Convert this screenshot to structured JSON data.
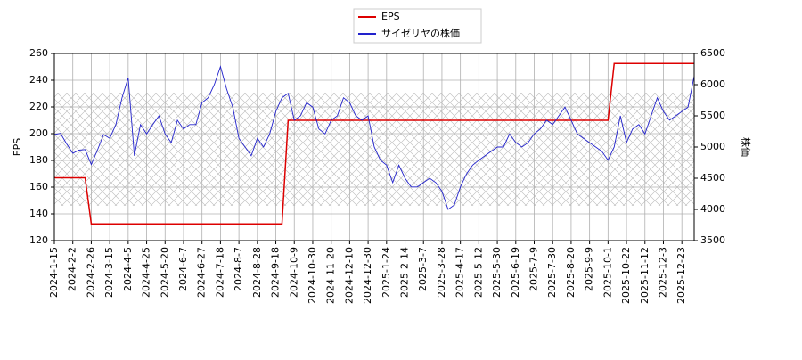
{
  "chart_data": {
    "type": "line",
    "ylabel": "EPS",
    "y2label": "株価",
    "categories": [
      "2024-1-15",
      null,
      null,
      "2024-2-2",
      null,
      null,
      "2024-2-26",
      null,
      null,
      "2024-3-15",
      null,
      null,
      "2024-4-5",
      null,
      null,
      "2024-4-25",
      null,
      null,
      "2024-5-20",
      null,
      null,
      "2024-6-7",
      null,
      null,
      "2024-6-27",
      null,
      null,
      "2024-7-18",
      null,
      null,
      "2024-8-7",
      null,
      null,
      "2024-8-28",
      null,
      null,
      "2024-9-18",
      null,
      null,
      "2024-10-9",
      null,
      null,
      "2024-10-30",
      null,
      null,
      "2024-11-20",
      null,
      null,
      "2024-12-10",
      null,
      null,
      "2024-12-30",
      null,
      null,
      "2025-1-24",
      null,
      null,
      "2025-2-14",
      null,
      null,
      "2025-3-7",
      null,
      null,
      "2025-3-28",
      null,
      null,
      "2025-4-17",
      null,
      null,
      "2025-5-12",
      null,
      null,
      "2025-5-30",
      null,
      null,
      "2025-6-19",
      null,
      null,
      "2025-7-9",
      null,
      null,
      "2025-7-30",
      null,
      null,
      "2025-8-20",
      null,
      null,
      "2025-9-9",
      null,
      null,
      "2025-10-1",
      null,
      null,
      "2025-10-22",
      null,
      null,
      "2025-11-12",
      null,
      null,
      "2025-12-3",
      null,
      null,
      "2025-12-23",
      null,
      null
    ],
    "series": [
      {
        "name": "EPS",
        "color": "#dd0000",
        "axis": "y",
        "values": [
          167,
          167,
          167,
          167,
          167,
          167,
          132.5,
          132.5,
          132.5,
          132.5,
          132.5,
          132.5,
          132.5,
          132.5,
          132.5,
          132.5,
          132.5,
          132.5,
          132.5,
          132.5,
          132.5,
          132.5,
          132.5,
          132.5,
          132.5,
          132.5,
          132.5,
          132.5,
          132.5,
          132.5,
          132.5,
          132.5,
          132.5,
          132.5,
          132.5,
          132.5,
          132.5,
          132.5,
          210,
          210,
          210,
          210,
          210,
          210,
          210,
          210,
          210,
          210,
          210,
          210,
          210,
          210,
          210,
          210,
          210,
          210,
          210,
          210,
          210,
          210,
          210,
          210,
          210,
          210,
          210,
          210,
          210,
          210,
          210,
          210,
          210,
          210,
          210,
          210,
          210,
          210,
          210,
          210,
          210,
          210,
          210,
          210,
          210,
          210,
          210,
          210,
          210,
          210,
          210,
          210,
          210,
          252.5,
          252.5,
          252.5,
          252.5,
          252.5,
          252.5,
          252.5,
          252.5,
          252.5,
          252.5,
          252.5,
          252.5,
          252.5,
          252.5
        ]
      },
      {
        "name": "サイゼリヤの株価",
        "color": "#2222cc",
        "axis": "y2",
        "values": [
          5200,
          5220,
          5050,
          4900,
          4950,
          4960,
          4720,
          4950,
          5200,
          5140,
          5360,
          5790,
          6110,
          4860,
          5360,
          5210,
          5360,
          5500,
          5210,
          5070,
          5430,
          5290,
          5360,
          5360,
          5710,
          5790,
          6000,
          6290,
          5930,
          5640,
          5140,
          5000,
          4860,
          5140,
          5000,
          5210,
          5570,
          5790,
          5860,
          5430,
          5500,
          5710,
          5640,
          5290,
          5210,
          5430,
          5500,
          5790,
          5710,
          5500,
          5430,
          5500,
          5000,
          4790,
          4710,
          4430,
          4710,
          4500,
          4360,
          4360,
          4430,
          4500,
          4430,
          4290,
          4000,
          4070,
          4360,
          4570,
          4710,
          4790,
          4860,
          4930,
          5000,
          5000,
          5210,
          5070,
          5000,
          5070,
          5210,
          5290,
          5430,
          5360,
          5500,
          5640,
          5430,
          5210,
          5140,
          5070,
          5000,
          4930,
          4790,
          5000,
          5500,
          5070,
          5290,
          5360,
          5210,
          5500,
          5790,
          5570,
          5430,
          5500,
          5570,
          5640,
          6140
        ]
      }
    ],
    "ylim": [
      120,
      260
    ],
    "yticks": [
      120,
      140,
      160,
      180,
      200,
      220,
      240,
      260
    ],
    "y2lim": [
      3500,
      6500
    ],
    "y2ticks": [
      3500,
      4000,
      4500,
      5000,
      5500,
      6000,
      6500
    ],
    "grid": true,
    "legend": "top"
  }
}
